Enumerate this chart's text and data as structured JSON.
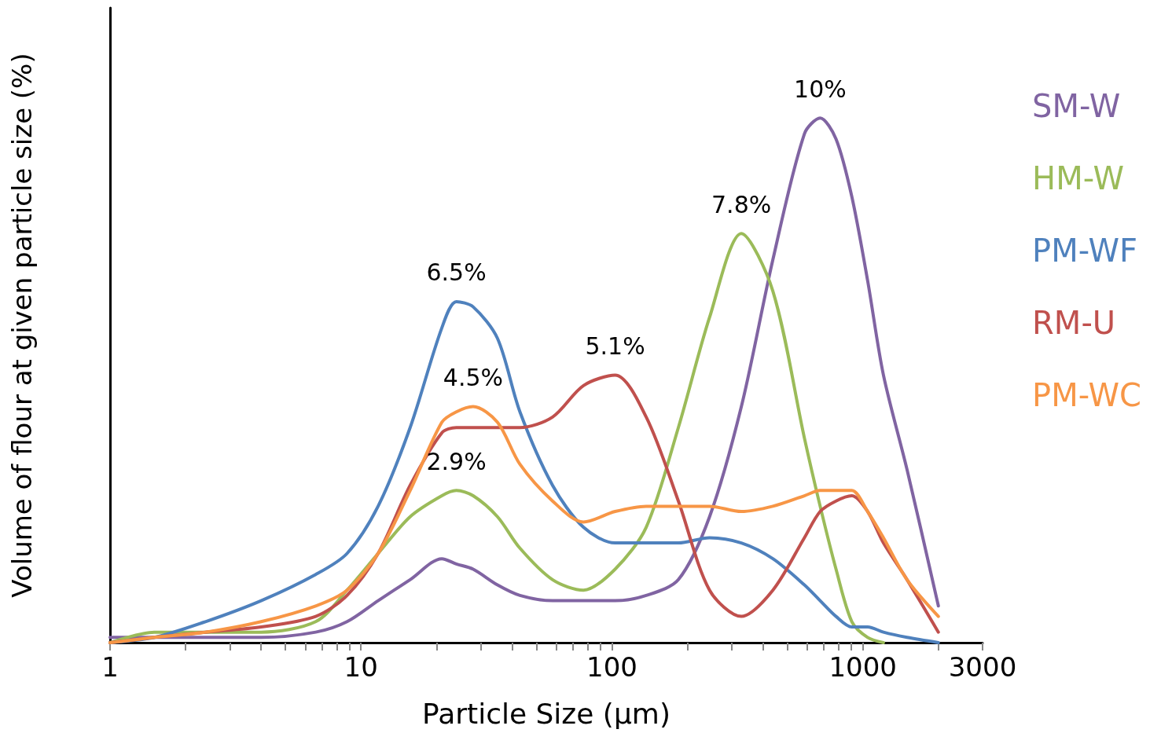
{
  "chart_data": {
    "type": "line",
    "xlabel": "Particle Size (µm)",
    "ylabel": "Volume of flour at given particle size (%)",
    "x": [
      1,
      1.5,
      2.4,
      4,
      6.6,
      8.8,
      11.7,
      15.7,
      21,
      24,
      28,
      35,
      43,
      58,
      77,
      103,
      137,
      184,
      245,
      328,
      438,
      585,
      676,
      782,
      904,
      1045,
      1208,
      1500,
      2000
    ],
    "log": "x",
    "grid": false,
    "legend": "right",
    "marker": "none",
    "line_style": "solid",
    "tick_labels": "x",
    "xlim": [
      1,
      3000
    ],
    "xticks": [
      1,
      {
        "value": 2,
        "label": null
      },
      {
        "value": 3,
        "label": null
      },
      {
        "value": 4,
        "label": null
      },
      {
        "value": 5,
        "label": null
      },
      {
        "value": 6,
        "label": null
      },
      {
        "value": 7,
        "label": null
      },
      {
        "value": 8,
        "label": null
      },
      {
        "value": 9,
        "label": null
      },
      10,
      {
        "value": 20,
        "label": null
      },
      {
        "value": 30,
        "label": null
      },
      {
        "value": 40,
        "label": null
      },
      {
        "value": 50,
        "label": null
      },
      {
        "value": 60,
        "label": null
      },
      {
        "value": 70,
        "label": null
      },
      {
        "value": 80,
        "label": null
      },
      {
        "value": 90,
        "label": null
      },
      100,
      {
        "value": 200,
        "label": null
      },
      {
        "value": 300,
        "label": null
      },
      {
        "value": 400,
        "label": null
      },
      {
        "value": 500,
        "label": null
      },
      {
        "value": 600,
        "label": null
      },
      {
        "value": 700,
        "label": null
      },
      {
        "value": 800,
        "label": null
      },
      {
        "value": 900,
        "label": null
      },
      1000,
      {
        "value": 2000,
        "label": null
      },
      3000
    ],
    "series": [
      {
        "name": "SM-W",
        "color": "#8064a2",
        "values": [
          0.1,
          0.1,
          0.1,
          0.1,
          0.2,
          0.4,
          0.8,
          1.2,
          1.6,
          1.5,
          1.4,
          1.1,
          0.9,
          0.8,
          0.8,
          0.8,
          0.9,
          1.2,
          2.4,
          4.5,
          7.3,
          9.7,
          10,
          9.6,
          8.5,
          6.9,
          5.1,
          3.3,
          0.7
        ],
        "value_labels": [
          null,
          null,
          null,
          null,
          null,
          null,
          null,
          null,
          null,
          null,
          null,
          null,
          null,
          null,
          null,
          null,
          null,
          null,
          null,
          null,
          null,
          null,
          "10%",
          null,
          null,
          null,
          null,
          null,
          null
        ]
      },
      {
        "name": "HM-W",
        "color": "#9bbb59",
        "values": [
          0.0,
          0.2,
          0.2,
          0.2,
          0.4,
          1.0,
          1.7,
          2.4,
          2.8,
          2.9,
          2.8,
          2.4,
          1.8,
          1.2,
          1.0,
          1.4,
          2.2,
          4.1,
          6.2,
          7.8,
          6.7,
          3.9,
          2.6,
          1.4,
          0.4,
          0.1,
          0.0,
          null,
          null
        ],
        "value_labels": [
          null,
          null,
          null,
          null,
          null,
          null,
          null,
          null,
          null,
          "2.9%",
          null,
          null,
          null,
          null,
          null,
          null,
          null,
          null,
          null,
          "7.8%",
          null,
          null,
          null,
          null,
          null,
          null,
          null,
          null,
          null
        ]
      },
      {
        "name": "PM-WF",
        "color": "#4f81bd",
        "values": [
          0.0,
          0.1,
          0.4,
          0.8,
          1.3,
          1.7,
          2.6,
          4.1,
          6.0,
          6.5,
          6.4,
          5.8,
          4.4,
          3.0,
          2.2,
          1.9,
          1.9,
          1.9,
          2.0,
          1.9,
          1.6,
          1.1,
          0.8,
          0.5,
          0.3,
          0.3,
          0.2,
          0.1,
          0.0
        ],
        "value_labels": [
          null,
          null,
          null,
          null,
          null,
          null,
          null,
          null,
          null,
          "6.5%",
          null,
          null,
          null,
          null,
          null,
          null,
          null,
          null,
          null,
          null,
          null,
          null,
          null,
          null,
          null,
          null,
          null,
          null,
          null
        ]
      },
      {
        "name": "RM-U",
        "color": "#c0504d",
        "values": [
          0.0,
          0.1,
          0.2,
          0.3,
          0.5,
          0.9,
          1.7,
          3.0,
          4.0,
          4.1,
          4.1,
          4.1,
          4.1,
          4.3,
          4.9,
          5.1,
          4.3,
          2.7,
          1.0,
          0.5,
          1.0,
          2.0,
          2.5,
          2.7,
          2.8,
          2.5,
          1.9,
          1.2,
          0.2
        ],
        "value_labels": [
          null,
          null,
          null,
          null,
          null,
          null,
          null,
          null,
          null,
          null,
          null,
          null,
          null,
          null,
          null,
          "5.1%",
          null,
          null,
          null,
          null,
          null,
          null,
          null,
          null,
          null,
          null,
          null,
          null,
          null
        ]
      },
      {
        "name": "PM-WC",
        "color": "#f79646",
        "values": [
          0.0,
          0.1,
          0.2,
          0.4,
          0.7,
          1.0,
          1.7,
          2.9,
          4.2,
          4.4,
          4.5,
          4.2,
          3.4,
          2.7,
          2.3,
          2.5,
          2.6,
          2.6,
          2.6,
          2.5,
          2.6,
          2.8,
          2.9,
          2.9,
          2.9,
          2.5,
          2.0,
          1.2,
          0.5
        ],
        "value_labels": [
          null,
          null,
          null,
          null,
          null,
          null,
          null,
          null,
          null,
          null,
          "4.5%",
          null,
          null,
          null,
          null,
          null,
          null,
          null,
          null,
          null,
          null,
          null,
          null,
          null,
          null,
          null,
          null,
          null,
          null
        ]
      }
    ]
  }
}
